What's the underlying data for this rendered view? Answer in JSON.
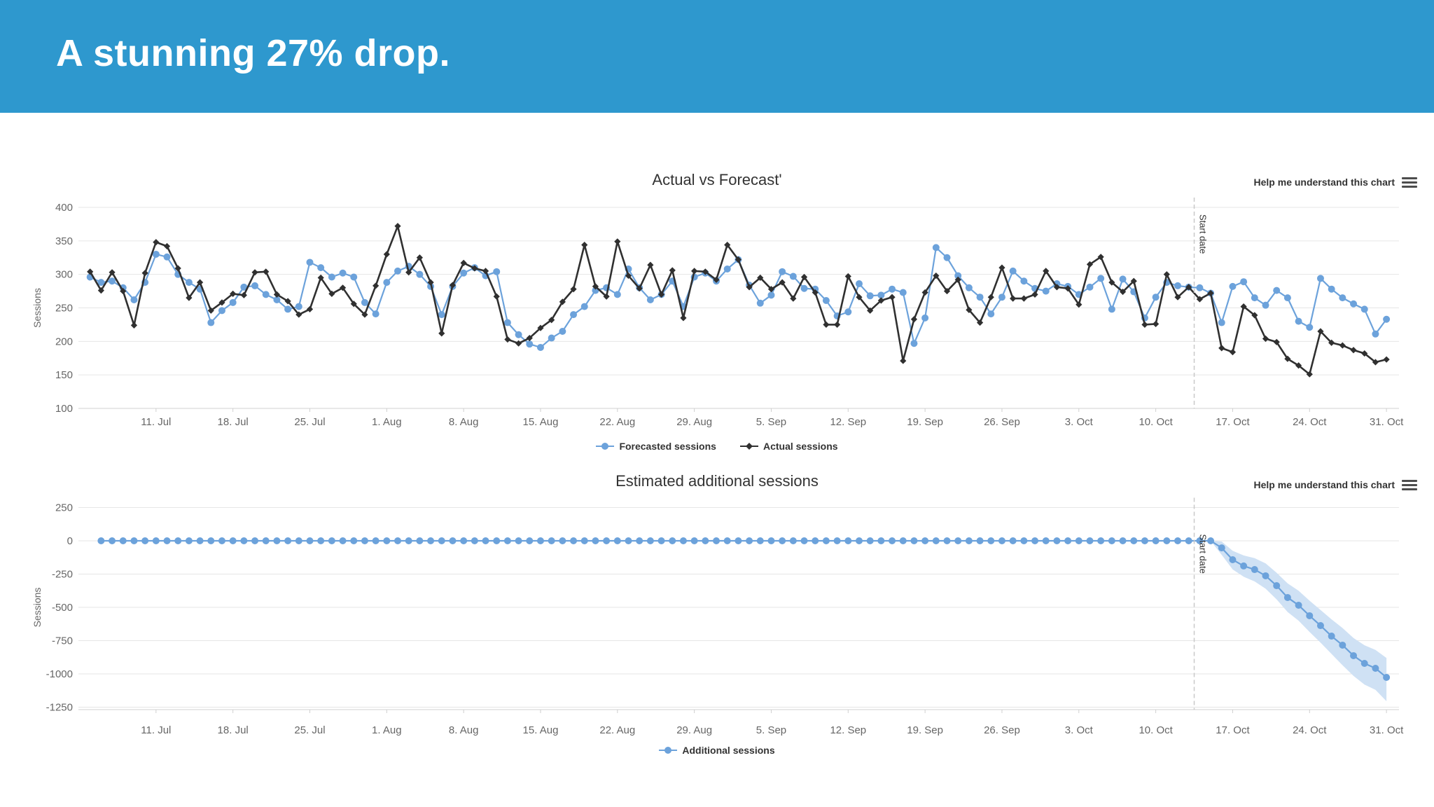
{
  "header": {
    "title": "A stunning 27% drop.",
    "background_color": "#2e98ce",
    "text_color": "#ffffff"
  },
  "chart_data": [
    {
      "type": "line",
      "title": "Actual vs Forecast'",
      "help_label": "Help me understand this chart",
      "y_axis": {
        "title": "Sessions",
        "ticks": [
          400,
          350,
          300,
          250,
          200,
          150,
          100
        ],
        "min": 100,
        "max": 400,
        "grid": true
      },
      "x_axis": {
        "days_total": 120,
        "ticks": [
          {
            "label": "11. Jul",
            "day": 7
          },
          {
            "label": "18. Jul",
            "day": 14
          },
          {
            "label": "25. Jul",
            "day": 21
          },
          {
            "label": "1. Aug",
            "day": 28
          },
          {
            "label": "8. Aug",
            "day": 35
          },
          {
            "label": "15. Aug",
            "day": 42
          },
          {
            "label": "22. Aug",
            "day": 49
          },
          {
            "label": "29. Aug",
            "day": 56
          },
          {
            "label": "5. Sep",
            "day": 63
          },
          {
            "label": "12. Sep",
            "day": 70
          },
          {
            "label": "19. Sep",
            "day": 77
          },
          {
            "label": "26. Sep",
            "day": 84
          },
          {
            "label": "3. Oct",
            "day": 91
          },
          {
            "label": "10. Oct",
            "day": 98
          },
          {
            "label": "17. Oct",
            "day": 105
          },
          {
            "label": "24. Oct",
            "day": 112
          },
          {
            "label": "31. Oct",
            "day": 119
          }
        ]
      },
      "annotation": {
        "label": "Start date",
        "day_index": 101.5
      },
      "legend_position": "bottom-center",
      "series": [
        {
          "name": "Forecasted sessions",
          "color": "#6ca2db",
          "marker": "circle",
          "width": 2.2,
          "values": [
            null,
            296,
            288,
            290,
            280,
            262,
            288,
            330,
            326,
            300,
            288,
            278,
            228,
            246,
            258,
            281,
            283,
            270,
            262,
            248,
            252,
            318,
            310,
            296,
            302,
            296,
            258,
            241,
            288,
            305,
            312,
            300,
            282,
            240,
            282,
            302,
            310,
            298,
            304,
            228,
            210,
            196,
            191,
            205,
            215,
            240,
            252,
            276,
            280,
            270,
            308,
            280,
            262,
            270,
            290,
            252,
            296,
            302,
            290,
            308,
            322,
            284,
            257,
            269,
            304,
            297,
            279,
            278,
            261,
            238,
            244,
            286,
            268,
            269,
            278,
            273,
            197,
            235,
            340,
            325,
            298,
            280,
            266,
            241,
            266,
            305,
            290,
            279,
            275,
            286,
            282,
            270,
            281,
            294,
            248,
            293,
            274,
            235,
            266,
            288,
            283,
            281,
            280,
            272,
            228,
            282,
            289,
            265,
            254,
            276,
            265,
            230,
            221,
            294,
            278,
            265,
            256,
            248,
            211,
            233
          ]
        },
        {
          "name": "Actual sessions",
          "color": "#303030",
          "marker": "diamond",
          "width": 2.6,
          "values": [
            null,
            304,
            276,
            303,
            275,
            224,
            302,
            348,
            342,
            309,
            265,
            288,
            246,
            258,
            271,
            269,
            303,
            304,
            270,
            260,
            240,
            248,
            295,
            271,
            280,
            256,
            240,
            283,
            330,
            372,
            303,
            325,
            288,
            212,
            284,
            317,
            309,
            305,
            267,
            203,
            197,
            205,
            220,
            232,
            259,
            278,
            344,
            282,
            267,
            349,
            298,
            279,
            314,
            270,
            306,
            235,
            305,
            304,
            292,
            344,
            322,
            281,
            295,
            278,
            288,
            264,
            296,
            273,
            225,
            225,
            297,
            266,
            246,
            261,
            266,
            171,
            233,
            273,
            298,
            275,
            292,
            247,
            228,
            266,
            310,
            264,
            264,
            270,
            305,
            281,
            279,
            255,
            315,
            326,
            288,
            274,
            290,
            225,
            226,
            300,
            266,
            281,
            263,
            272,
            190,
            184,
            252,
            239,
            204,
            199,
            174,
            164,
            151,
            215,
            198,
            194,
            187,
            182,
            169,
            173
          ]
        }
      ]
    },
    {
      "type": "line",
      "title": "Estimated additional sessions",
      "help_label": "Help me understand this chart",
      "y_axis": {
        "title": "Sessions",
        "ticks": [
          250,
          0,
          -250,
          -500,
          -750,
          -1000,
          -1250
        ],
        "min": -1250,
        "max": 250,
        "grid": true
      },
      "x_axis": {
        "days_total": 120,
        "ticks": [
          {
            "label": "11. Jul",
            "day": 7
          },
          {
            "label": "18. Jul",
            "day": 14
          },
          {
            "label": "25. Jul",
            "day": 21
          },
          {
            "label": "1. Aug",
            "day": 28
          },
          {
            "label": "8. Aug",
            "day": 35
          },
          {
            "label": "15. Aug",
            "day": 42
          },
          {
            "label": "22. Aug",
            "day": 49
          },
          {
            "label": "29. Aug",
            "day": 56
          },
          {
            "label": "5. Sep",
            "day": 63
          },
          {
            "label": "12. Sep",
            "day": 70
          },
          {
            "label": "19. Sep",
            "day": 77
          },
          {
            "label": "26. Sep",
            "day": 84
          },
          {
            "label": "3. Oct",
            "day": 91
          },
          {
            "label": "10. Oct",
            "day": 98
          },
          {
            "label": "17. Oct",
            "day": 105
          },
          {
            "label": "24. Oct",
            "day": 112
          },
          {
            "label": "31. Oct",
            "day": 119
          }
        ]
      },
      "annotation": {
        "label": "Start date",
        "day_index": 101.5
      },
      "legend_position": "bottom-center",
      "band": {
        "color": "#cfe1f4",
        "days": [
          103,
          104,
          105,
          106,
          107,
          108,
          109,
          110,
          111,
          112,
          113,
          114,
          115,
          116,
          117,
          118,
          119
        ],
        "upper": [
          0,
          -5,
          -75,
          -110,
          -130,
          -170,
          -240,
          -320,
          -375,
          -450,
          -520,
          -590,
          -655,
          -730,
          -785,
          -820,
          -880
        ],
        "lower": [
          0,
          -105,
          -215,
          -270,
          -305,
          -360,
          -440,
          -535,
          -600,
          -685,
          -765,
          -850,
          -935,
          -1015,
          -1080,
          -1120,
          -1205
        ]
      },
      "series": [
        {
          "name": "Additional sessions",
          "color": "#6ca2db",
          "marker": "circle",
          "width": 2.2,
          "values": [
            null,
            null,
            0,
            0,
            0,
            0,
            0,
            0,
            0,
            0,
            0,
            0,
            0,
            0,
            0,
            0,
            0,
            0,
            0,
            0,
            0,
            0,
            0,
            0,
            0,
            0,
            0,
            0,
            0,
            0,
            0,
            0,
            0,
            0,
            0,
            0,
            0,
            0,
            0,
            0,
            0,
            0,
            0,
            0,
            0,
            0,
            0,
            0,
            0,
            0,
            0,
            0,
            0,
            0,
            0,
            0,
            0,
            0,
            0,
            0,
            0,
            0,
            0,
            0,
            0,
            0,
            0,
            0,
            0,
            0,
            0,
            0,
            0,
            0,
            0,
            0,
            0,
            0,
            0,
            0,
            0,
            0,
            0,
            0,
            0,
            0,
            0,
            0,
            0,
            0,
            0,
            0,
            0,
            0,
            0,
            0,
            0,
            0,
            0,
            0,
            0,
            0,
            0,
            0,
            -53,
            -142,
            -189,
            -216,
            -263,
            -337,
            -426,
            -484,
            -563,
            -637,
            -716,
            -784,
            -863,
            -921,
            -958,
            -1026
          ]
        }
      ]
    }
  ],
  "colors": {
    "gridline": "#e6e6e6",
    "axis_line": "#d0d0d0",
    "annotation_line": "#c9c9c9",
    "axis_text": "#666666",
    "title_text": "#333333"
  }
}
